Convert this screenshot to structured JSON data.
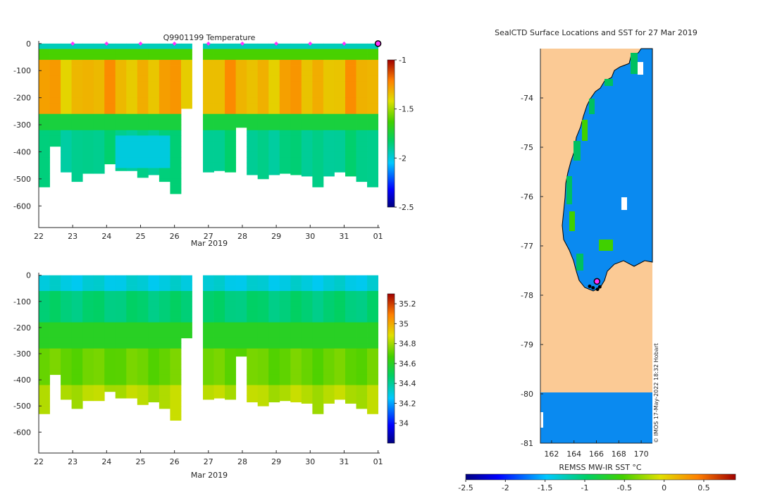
{
  "colors": {
    "land": "#fbca95",
    "ocean": "#0a8af0",
    "profile_marker": "#ff33ff",
    "coast": "#000000"
  },
  "chart_data": [
    {
      "type": "heatmap",
      "title": "Q9901199  Temperature",
      "xlabel": "Mar 2019",
      "ylabel": "",
      "xticks": [
        "22",
        "23",
        "24",
        "25",
        "26",
        "27",
        "28",
        "29",
        "30",
        "31",
        "01"
      ],
      "yticks": [
        "0",
        "-100",
        "-200",
        "-300",
        "-400",
        "-500",
        "-600"
      ],
      "xlim": [
        22,
        32.05
      ],
      "ylim": [
        -680,
        10
      ],
      "colorbar": {
        "range": [
          -2.5,
          -1
        ],
        "ticks": [
          "-1",
          "-1.5",
          "-2",
          "-2.5"
        ],
        "tick_values": [
          -1,
          -1.5,
          -2,
          -2.5
        ]
      },
      "profile_days": [
        23,
        24,
        25,
        26,
        27,
        28,
        29,
        30,
        31
      ],
      "last_profile_day": 32,
      "profile_depths": [
        -530,
        -380,
        -475,
        -510,
        -480,
        -480,
        -445,
        -470,
        -470,
        -495,
        -485,
        -510,
        -555,
        -240,
        -475,
        -475,
        -470,
        -475,
        -310,
        -485,
        -500,
        -485,
        -480,
        -485,
        -490,
        -530,
        -490,
        -475,
        -490,
        -510,
        -530
      ],
      "profile_gaps": [
        [
          26.6,
          26.95
        ],
        [
          29.42,
          29.58
        ]
      ]
    },
    {
      "type": "heatmap",
      "title": "",
      "xlabel": "Mar 2019",
      "ylabel": "",
      "xticks": [
        "22",
        "23",
        "24",
        "25",
        "26",
        "27",
        "28",
        "29",
        "30",
        "31",
        "01"
      ],
      "yticks": [
        "0",
        "-100",
        "-200",
        "-300",
        "-400",
        "-500",
        "-600"
      ],
      "xlim": [
        22,
        32.05
      ],
      "ylim": [
        -680,
        10
      ],
      "colorbar": {
        "range": [
          33.8,
          35.3
        ],
        "ticks": [
          "35.2",
          "35",
          "34.8",
          "34.6",
          "34.4",
          "34.2",
          "34"
        ],
        "tick_values": [
          35.2,
          35,
          34.8,
          34.6,
          34.4,
          34.2,
          34
        ]
      }
    },
    {
      "type": "heatmap",
      "title": "SealCTD Surface Locations and SST for 27 Mar 2019",
      "xlabel": "REMSS MW-IR SST °C",
      "xticks": [
        "162",
        "164",
        "166",
        "168",
        "170"
      ],
      "yticks": [
        "-74",
        "-75",
        "-76",
        "-77",
        "-78",
        "-79",
        "-80",
        "-81"
      ],
      "xlim": [
        161,
        171
      ],
      "ylim": [
        -81,
        -73
      ],
      "colorbar": {
        "range": [
          -2.5,
          0.9
        ],
        "ticks": [
          "-2.5",
          "-2",
          "-1.5",
          "-1",
          "-0.5",
          "0",
          "0.5"
        ],
        "tick_values": [
          -2.5,
          -2,
          -1.5,
          -1,
          -0.5,
          0,
          0.5
        ]
      },
      "profile_locations": [
        {
          "lon": 166.0,
          "lat": -77.72
        },
        {
          "lon": 165.7,
          "lat": -77.85
        },
        {
          "lon": 165.4,
          "lat": -77.82
        },
        {
          "lon": 166.3,
          "lat": -77.83
        },
        {
          "lon": 166.1,
          "lat": -77.88
        }
      ],
      "last_location": {
        "lon": 166.05,
        "lat": -77.72
      },
      "credit": "© IMOS 17-May-2022 18:32 Hobart"
    }
  ]
}
